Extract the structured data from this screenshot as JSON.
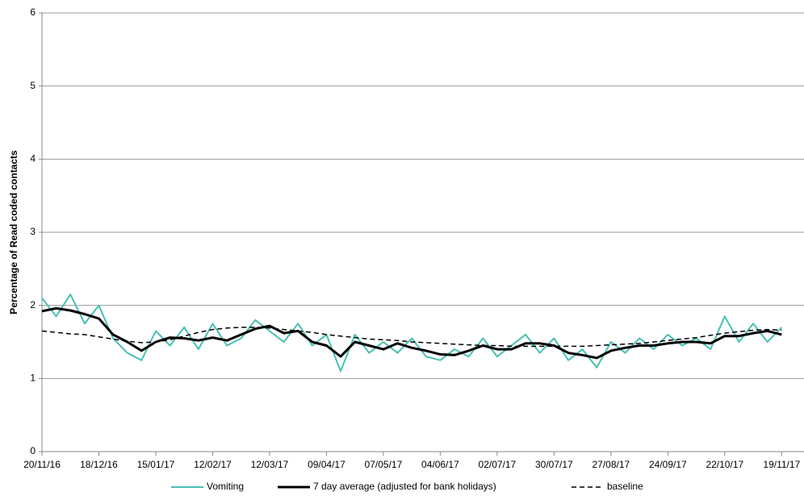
{
  "chart_data": {
    "type": "line",
    "y_label": "Percentage of Read coded contacts",
    "x": [
      "20/11/16",
      "27/11/16",
      "04/12/16",
      "11/12/16",
      "18/12/16",
      "25/12/16",
      "01/01/17",
      "08/01/17",
      "15/01/17",
      "22/01/17",
      "29/01/17",
      "05/02/17",
      "12/02/17",
      "19/02/17",
      "26/02/17",
      "05/03/17",
      "12/03/17",
      "19/03/17",
      "26/03/17",
      "02/04/17",
      "09/04/17",
      "16/04/17",
      "23/04/17",
      "30/04/17",
      "07/05/17",
      "14/05/17",
      "21/05/17",
      "28/05/17",
      "04/06/17",
      "11/06/17",
      "18/06/17",
      "25/06/17",
      "02/07/17",
      "09/07/17",
      "16/07/17",
      "23/07/17",
      "30/07/17",
      "06/08/17",
      "13/08/17",
      "20/08/17",
      "27/08/17",
      "03/09/17",
      "10/09/17",
      "17/09/17",
      "24/09/17",
      "01/10/17",
      "08/10/17",
      "15/10/17",
      "22/10/17",
      "29/10/17",
      "05/11/17",
      "12/11/17",
      "19/11/17"
    ],
    "series": [
      {
        "name": "Vomiting",
        "color": "#48c0b4",
        "style": "solid",
        "width": 2,
        "values": [
          2.1,
          1.85,
          2.15,
          1.75,
          2.0,
          1.55,
          1.35,
          1.25,
          1.65,
          1.45,
          1.7,
          1.4,
          1.75,
          1.45,
          1.55,
          1.8,
          1.65,
          1.5,
          1.75,
          1.45,
          1.6,
          1.1,
          1.6,
          1.35,
          1.5,
          1.35,
          1.55,
          1.3,
          1.25,
          1.4,
          1.3,
          1.55,
          1.3,
          1.45,
          1.6,
          1.35,
          1.55,
          1.25,
          1.4,
          1.15,
          1.5,
          1.35,
          1.55,
          1.4,
          1.6,
          1.45,
          1.55,
          1.4,
          1.85,
          1.5,
          1.75,
          1.5,
          1.7
        ]
      },
      {
        "name": "7 day average (adjusted for bank holidays)",
        "color": "#000000",
        "style": "solid",
        "width": 3,
        "values": [
          1.92,
          1.96,
          1.93,
          1.88,
          1.82,
          1.6,
          1.5,
          1.38,
          1.5,
          1.56,
          1.55,
          1.52,
          1.56,
          1.52,
          1.6,
          1.68,
          1.72,
          1.62,
          1.65,
          1.5,
          1.45,
          1.3,
          1.5,
          1.45,
          1.4,
          1.48,
          1.42,
          1.38,
          1.33,
          1.32,
          1.38,
          1.45,
          1.4,
          1.4,
          1.48,
          1.48,
          1.45,
          1.35,
          1.32,
          1.28,
          1.38,
          1.42,
          1.45,
          1.45,
          1.48,
          1.5,
          1.5,
          1.48,
          1.58,
          1.58,
          1.62,
          1.65,
          1.6
        ]
      },
      {
        "name": "baseline",
        "color": "#000000",
        "style": "dashed",
        "width": 1.5,
        "values": [
          1.65,
          1.63,
          1.61,
          1.6,
          1.57,
          1.54,
          1.51,
          1.49,
          1.5,
          1.53,
          1.58,
          1.63,
          1.67,
          1.69,
          1.7,
          1.7,
          1.69,
          1.67,
          1.65,
          1.63,
          1.6,
          1.58,
          1.56,
          1.54,
          1.53,
          1.52,
          1.5,
          1.49,
          1.48,
          1.47,
          1.46,
          1.45,
          1.45,
          1.44,
          1.44,
          1.44,
          1.44,
          1.44,
          1.44,
          1.45,
          1.46,
          1.47,
          1.48,
          1.5,
          1.52,
          1.54,
          1.56,
          1.59,
          1.62,
          1.64,
          1.66,
          1.67,
          1.66
        ]
      }
    ],
    "xlim": [
      "20/11/16",
      "30/11/17"
    ],
    "xticks": [
      "20/11/16",
      "18/12/16",
      "15/01/17",
      "12/02/17",
      "12/03/17",
      "09/04/17",
      "07/05/17",
      "04/06/17",
      "02/07/17",
      "30/07/17",
      "27/08/17",
      "24/09/17",
      "22/10/17",
      "19/11/17"
    ],
    "ylim": [
      0,
      6
    ],
    "yticks": [
      0,
      1,
      2,
      3,
      4,
      5,
      6
    ],
    "grid": true,
    "legend": "bottom"
  }
}
